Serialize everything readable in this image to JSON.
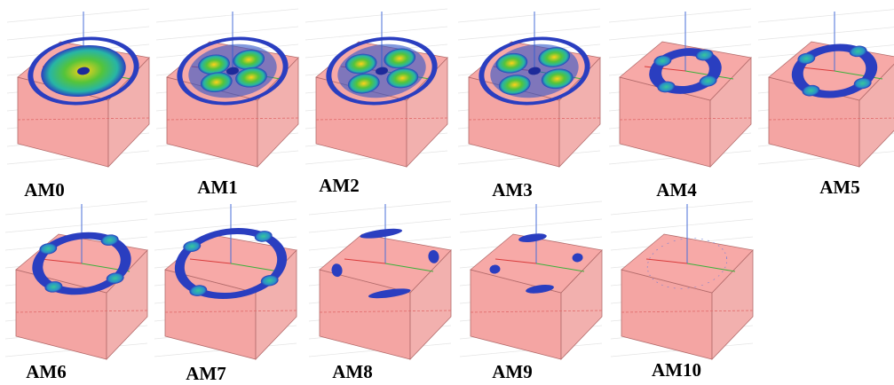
{
  "panels": [
    {
      "label": "AM0"
    },
    {
      "label": "AM1"
    },
    {
      "label": "AM2"
    },
    {
      "label": "AM3"
    },
    {
      "label": "AM4"
    },
    {
      "label": "AM5"
    },
    {
      "label": "AM6"
    },
    {
      "label": "AM7"
    },
    {
      "label": "AM8"
    },
    {
      "label": "AM9"
    },
    {
      "label": "AM10"
    }
  ]
}
